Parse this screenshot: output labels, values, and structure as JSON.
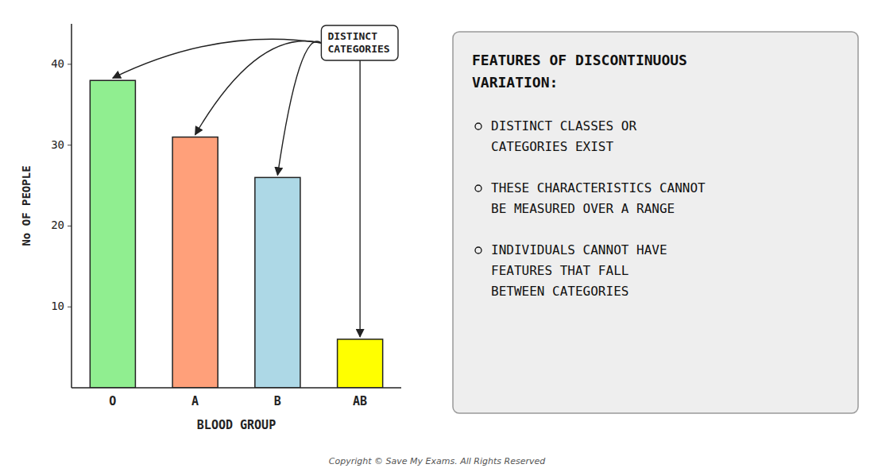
{
  "chart_data": {
    "type": "bar",
    "categories": [
      "O",
      "A",
      "B",
      "AB"
    ],
    "values": [
      38,
      31,
      26,
      6
    ],
    "colors": [
      "#90EE90",
      "#FFA07A",
      "#ADD8E6",
      "#FFFF00"
    ],
    "xlabel": "BLOOD  GROUP",
    "ylabel": "No  OF  PEOPLE",
    "ylim": [
      0,
      45
    ],
    "yticks": [
      10,
      20,
      30,
      40
    ],
    "grid": false,
    "annotations": [
      "DISTINCT\nCATEGORIES"
    ],
    "info_title": [
      "FEATURES OF DISCONTINUOUS",
      "VARIATION:"
    ],
    "info_bullets": [
      [
        "DISTINCT CLASSES OR",
        "CATEGORIES EXIST"
      ],
      [
        "THESE CHARACTERISTICS CANNOT",
        "BE MEASURED OVER A RANGE"
      ],
      [
        "INDIVIDUALS CANNOT HAVE",
        "FEATURES THAT FALL",
        "BETWEEN CATEGORIES"
      ]
    ],
    "footnote": "Copyright © Save My Exams. All Rights Reserved"
  }
}
